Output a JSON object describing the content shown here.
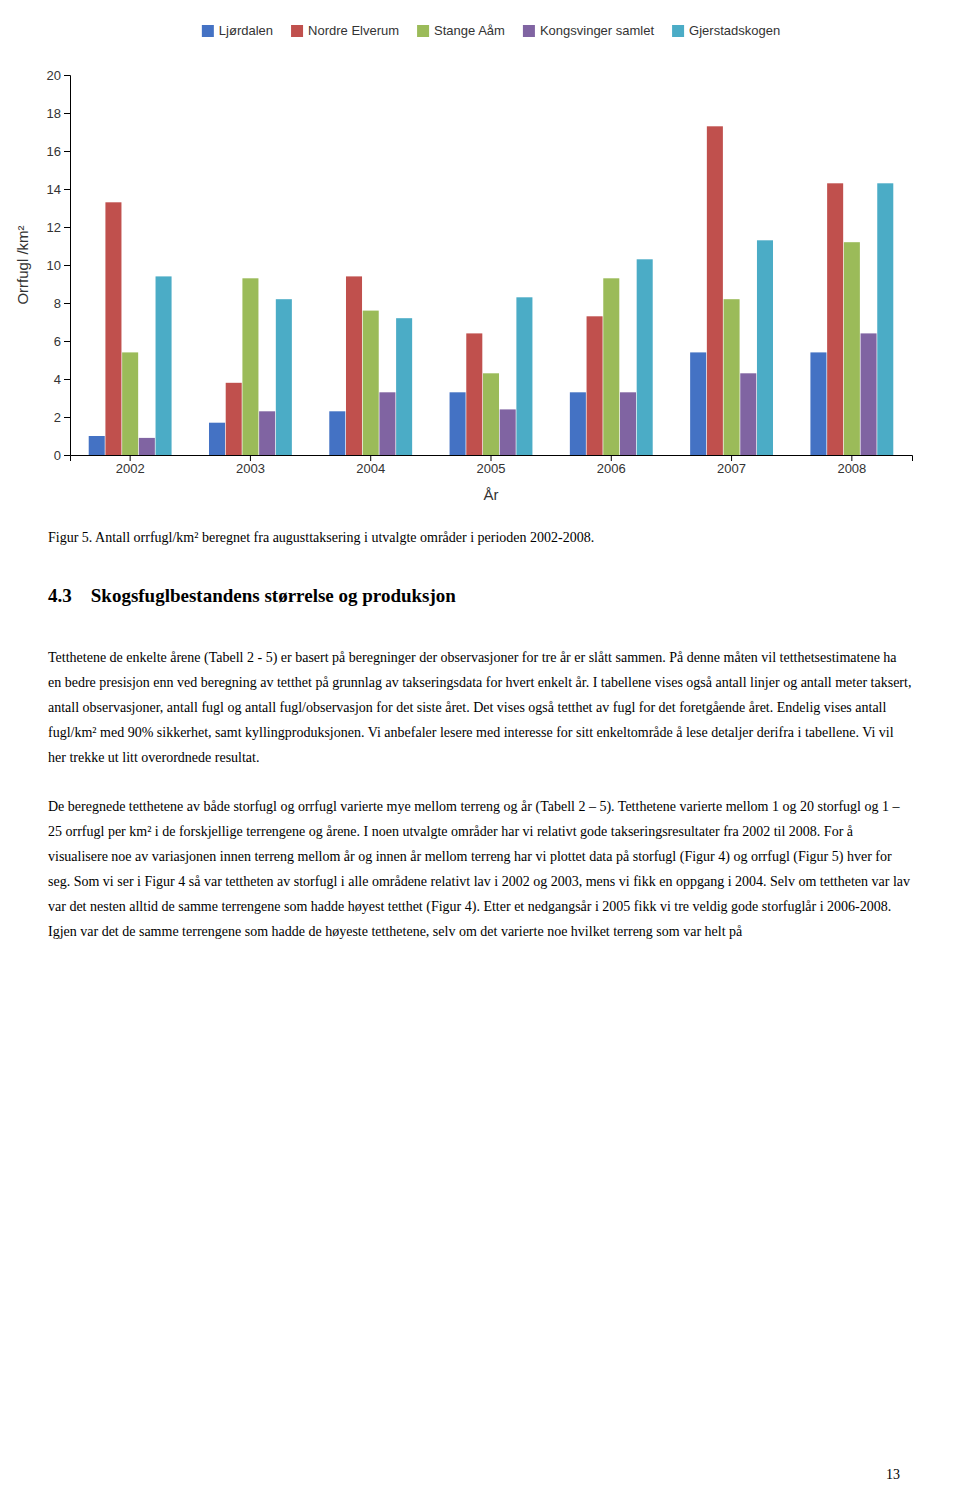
{
  "chart_data": {
    "type": "bar",
    "categories": [
      "2002",
      "2003",
      "2004",
      "2005",
      "2006",
      "2007",
      "2008"
    ],
    "series": [
      {
        "name": "Ljørdalen",
        "color": "#4472C4",
        "values": [
          1.0,
          1.7,
          2.3,
          3.3,
          3.3,
          5.4,
          5.4
        ]
      },
      {
        "name": "Nordre Elverum",
        "color": "#C0504D",
        "values": [
          13.3,
          3.8,
          9.4,
          6.4,
          7.3,
          17.3,
          14.3
        ]
      },
      {
        "name": "Stange Aåm",
        "color": "#9BBB59",
        "values": [
          5.4,
          9.3,
          7.6,
          4.3,
          9.3,
          8.2,
          11.2
        ]
      },
      {
        "name": "Kongsvinger samlet",
        "color": "#8064A2",
        "values": [
          0.9,
          2.3,
          3.3,
          2.4,
          3.3,
          4.3,
          6.4
        ]
      },
      {
        "name": "Gjerstadskogen",
        "color": "#4BACC6",
        "values": [
          9.4,
          8.2,
          7.2,
          8.3,
          10.3,
          11.3,
          14.3
        ]
      }
    ],
    "ylabel": "Orrfugl /km²",
    "xlabel": "År",
    "ylim": [
      0,
      20
    ],
    "yticks": [
      0,
      2,
      4,
      6,
      8,
      10,
      12,
      14,
      16,
      18,
      20
    ],
    "grid": false,
    "legend": "top"
  },
  "caption": "Figur 5. Antall orrfugl/km² beregnet fra augusttaksering i utvalgte områder i perioden 2002-2008.",
  "section_heading": "4.3 Skogsfuglbestandens størrelse og produksjon",
  "body_paragraphs": [
    "Tetthetene de enkelte årene (Tabell 2 - 5) er basert på beregninger der observasjoner for tre år er slått sammen. På denne måten vil tetthetsestimatene ha en bedre presisjon enn ved beregning av tetthet på grunnlag av takseringsdata for hvert enkelt år. I tabellene vises også antall linjer og antall meter taksert, antall observasjoner, antall fugl og antall fugl/observasjon for det siste året. Det vises også tetthet av fugl for det foretgående året. Endelig vises antall fugl/km² med 90% sikkerhet, samt kyllingproduksjonen. Vi anbefaler lesere med interesse for sitt enkeltområde å lese detaljer derifra i tabellene. Vi vil her trekke ut litt overordnede resultat.",
    "De beregnede tetthetene av både storfugl og orrfugl varierte mye mellom terreng og år (Tabell 2 – 5). Tetthetene varierte mellom 1 og 20 storfugl og 1 – 25 orrfugl per km² i de forskjellige terrengene og årene. I noen utvalgte områder har vi relativt gode takseringsresultater fra 2002 til 2008. For å visualisere noe av variasjonen innen terreng mellom år og innen år mellom terreng har vi plottet data på storfugl (Figur 4) og orrfugl (Figur 5) hver for seg. Som vi ser i Figur 4 så var tettheten av storfugl i alle områdene relativt lav i 2002 og 2003, mens vi fikk en oppgang i 2004. Selv om tettheten var lav var det nesten alltid de samme terrengene som hadde høyest tetthet (Figur 4). Etter et nedgangsår i 2005 fikk vi tre veldig gode storfuglår i 2006-2008. Igjen var det de samme terrengene som hadde de høyeste tetthetene, selv om det varierte noe hvilket terreng som var helt på"
  ],
  "page_number": "13"
}
